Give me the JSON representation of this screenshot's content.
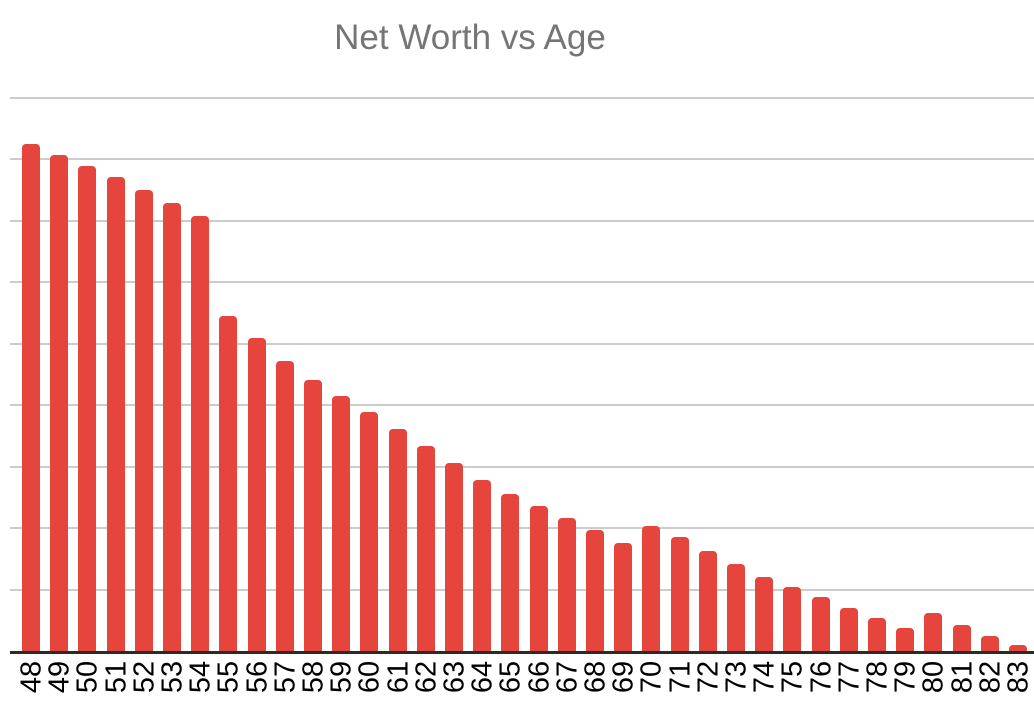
{
  "chart_data": {
    "type": "bar",
    "title": "Net Worth vs Age",
    "xlabel": "",
    "ylabel": "",
    "categories": [
      "48",
      "49",
      "50",
      "51",
      "52",
      "53",
      "54",
      "55",
      "56",
      "57",
      "58",
      "59",
      "60",
      "61",
      "62",
      "63",
      "64",
      "65",
      "66",
      "67",
      "68",
      "69",
      "70",
      "71",
      "72",
      "73",
      "74",
      "75",
      "76",
      "77",
      "78",
      "79",
      "80",
      "81",
      "82",
      "83"
    ],
    "values": [
      8.25,
      8.06,
      7.89,
      7.7,
      7.5,
      7.28,
      7.08,
      5.45,
      5.09,
      4.71,
      4.4,
      4.15,
      3.88,
      3.61,
      3.34,
      3.06,
      2.78,
      2.56,
      2.36,
      2.16,
      1.96,
      1.75,
      2.04,
      1.85,
      1.62,
      1.42,
      1.2,
      1.04,
      0.87,
      0.7,
      0.54,
      0.38,
      0.61,
      0.43,
      0.25,
      0.1
    ],
    "value_scale": "unlabeled y-axis; values estimated in gridline units (1 unit = one gridline interval)",
    "ylim": [
      0,
      9
    ],
    "y_gridline_interval": 1,
    "y_tick_labels_visible": false,
    "x_tick_label_rotation_deg": 90,
    "grid": "horizontal",
    "legend_position": "none"
  },
  "style": {
    "bar_color": "#E5453C",
    "gridline_color": "#CCCCCC",
    "axis_line_color": "#2B2B2B",
    "title_color": "#757575",
    "tick_label_color": "#000000",
    "background_color": "#FFFFFF"
  }
}
